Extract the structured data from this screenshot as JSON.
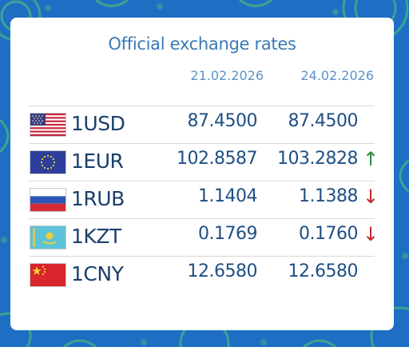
{
  "widget": {
    "title": "Official exchange rates",
    "date_prev": "21.02.2026",
    "date_curr": "24.02.2026"
  },
  "rates": [
    {
      "code": "1USD",
      "prev": "87.4500",
      "curr": "87.4500",
      "trend": "",
      "flag": "us-flag-icon"
    },
    {
      "code": "1EUR",
      "prev": "102.8587",
      "curr": "103.2828",
      "trend": "↑",
      "flag": "eu-flag-icon"
    },
    {
      "code": "1RUB",
      "prev": "1.1404",
      "curr": "1.1388",
      "trend": "↓",
      "flag": "ru-flag-icon"
    },
    {
      "code": "1KZT",
      "prev": "0.1769",
      "curr": "0.1760",
      "trend": "↓",
      "flag": "kz-flag-icon"
    },
    {
      "code": "1CNY",
      "prev": "12.6580",
      "curr": "12.6580",
      "trend": "",
      "flag": "cn-flag-icon"
    }
  ],
  "colors": {
    "background": "#1e6fc4",
    "up": "#2e8b3a",
    "down": "#c0282d",
    "title": "#3a79b5"
  }
}
